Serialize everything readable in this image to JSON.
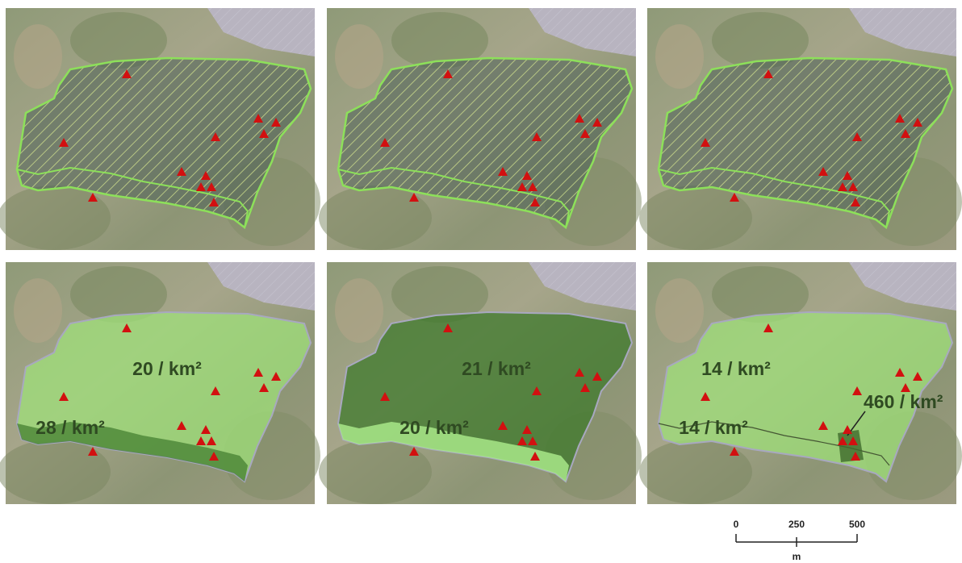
{
  "panels": [
    {
      "labels": []
    },
    {
      "labels": []
    },
    {
      "labels": []
    },
    {
      "labels": [
        "20 / km²",
        "28 / km²"
      ]
    },
    {
      "labels": [
        "21 / km²",
        "20 / km²"
      ]
    },
    {
      "labels": [
        "14 / km²",
        "14 / km²",
        "460 / km²"
      ]
    }
  ],
  "scale_bar": {
    "ticks": [
      0,
      250,
      500
    ],
    "unit": "m"
  }
}
